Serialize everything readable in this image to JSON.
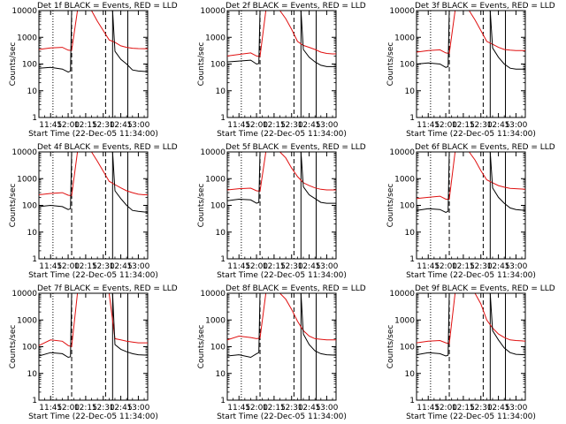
{
  "colors": {
    "events": "#000000",
    "lld": "#e01010",
    "background": "#ffffff",
    "axes": "#000000"
  },
  "chart_data": [
    {
      "type": "line",
      "title": "Det 1f BLACK = Events, RED = LLD",
      "xlabel": "Start Time (22-Dec-05 11:34:00)",
      "ylabel": "Counts/sec",
      "ylog": true,
      "ylim": [
        1,
        10000
      ],
      "xlim": [
        "11:35",
        "13:08"
      ],
      "x_ticks": [
        "11:45",
        "12:00",
        "12:15",
        "12:30",
        "12:45",
        "13:00"
      ],
      "y_ticks": [
        "1",
        "10",
        "100",
        "1000",
        "10000"
      ],
      "series": [
        {
          "name": "LLD",
          "x": [
            "11:35",
            "11:45",
            "11:55",
            "12:00",
            "12:03",
            "12:08",
            "12:15",
            "12:20",
            "12:25",
            "12:30",
            "12:35",
            "12:40",
            "12:45",
            "12:50",
            "12:55",
            "13:00",
            "13:05",
            "13:08"
          ],
          "y": [
            350,
            400,
            420,
            330,
            320,
            10000,
            10000,
            10000,
            4000,
            1800,
            800,
            650,
            480,
            420,
            390,
            380,
            375,
            370
          ]
        },
        {
          "name": "Events",
          "x": [
            "11:35",
            "11:45",
            "11:55",
            "12:00",
            "12:02",
            "12:03",
            "12:08",
            "12:15",
            "12:20",
            "12:25",
            "12:30",
            "12:33",
            "12:38",
            "12:40",
            "12:45",
            "12:50",
            "12:55",
            "13:00",
            "13:08"
          ],
          "y": [
            70,
            75,
            65,
            50,
            55,
            10000,
            10000,
            10000,
            10000,
            10000,
            10000,
            10000,
            10000,
            300,
            150,
            100,
            60,
            55,
            52
          ]
        }
      ]
    },
    {
      "type": "line",
      "title": "Det 2f BLACK = Events, RED = LLD",
      "xlabel": "Start Time (22-Dec-05 11:34:00)",
      "ylabel": "Counts/sec",
      "ylog": true,
      "ylim": [
        1,
        10000
      ],
      "xlim": [
        "11:35",
        "13:08"
      ],
      "x_ticks": [
        "11:45",
        "12:00",
        "12:15",
        "12:30",
        "12:45",
        "13:00"
      ],
      "y_ticks": [
        "1",
        "10",
        "100",
        "1000",
        "10000"
      ],
      "series": [
        {
          "name": "LLD",
          "x": [
            "11:35",
            "11:45",
            "11:55",
            "12:00",
            "12:03",
            "12:08",
            "12:15",
            "12:20",
            "12:25",
            "12:30",
            "12:35",
            "12:40",
            "12:45",
            "12:50",
            "12:55",
            "13:00",
            "13:05",
            "13:08"
          ],
          "y": [
            200,
            230,
            260,
            200,
            190,
            10000,
            10000,
            10000,
            5000,
            2000,
            700,
            500,
            420,
            350,
            280,
            250,
            240,
            240
          ]
        },
        {
          "name": "Events",
          "x": [
            "11:35",
            "11:45",
            "11:55",
            "12:00",
            "12:02",
            "12:03",
            "12:08",
            "12:15",
            "12:20",
            "12:25",
            "12:30",
            "12:33",
            "12:38",
            "12:40",
            "12:45",
            "12:50",
            "12:55",
            "13:00",
            "13:08"
          ],
          "y": [
            120,
            130,
            140,
            100,
            105,
            10000,
            10000,
            10000,
            10000,
            10000,
            10000,
            10000,
            10000,
            350,
            180,
            120,
            90,
            80,
            80
          ]
        }
      ]
    },
    {
      "type": "line",
      "title": "Det 3f BLACK = Events, RED = LLD",
      "xlabel": "Start Time (22-Dec-05 11:34:00)",
      "ylabel": "Counts/sec",
      "ylog": true,
      "ylim": [
        1,
        10000
      ],
      "xlim": [
        "11:35",
        "13:08"
      ],
      "x_ticks": [
        "11:45",
        "12:00",
        "12:15",
        "12:30",
        "12:45",
        "13:00"
      ],
      "y_ticks": [
        "1",
        "10",
        "100",
        "1000",
        "10000"
      ],
      "series": [
        {
          "name": "LLD",
          "x": [
            "11:35",
            "11:45",
            "11:55",
            "12:00",
            "12:03",
            "12:08",
            "12:15",
            "12:20",
            "12:25",
            "12:30",
            "12:35",
            "12:40",
            "12:45",
            "12:50",
            "12:55",
            "13:00",
            "13:05",
            "13:08"
          ],
          "y": [
            280,
            320,
            340,
            260,
            250,
            10000,
            10000,
            10000,
            4500,
            1800,
            700,
            550,
            420,
            350,
            330,
            320,
            320,
            320
          ]
        },
        {
          "name": "Events",
          "x": [
            "11:35",
            "11:45",
            "11:55",
            "12:00",
            "12:02",
            "12:03",
            "12:08",
            "12:15",
            "12:20",
            "12:25",
            "12:30",
            "12:33",
            "12:38",
            "12:40",
            "12:45",
            "12:50",
            "12:55",
            "13:00",
            "13:08"
          ],
          "y": [
            100,
            110,
            100,
            75,
            80,
            10000,
            10000,
            10000,
            10000,
            10000,
            10000,
            10000,
            10000,
            400,
            180,
            100,
            70,
            65,
            65
          ]
        }
      ]
    },
    {
      "type": "line",
      "title": "Det 4f BLACK = Events, RED = LLD",
      "xlabel": "Start Time (22-Dec-05 11:34:00)",
      "ylabel": "Counts/sec",
      "ylog": true,
      "ylim": [
        1,
        10000
      ],
      "xlim": [
        "11:35",
        "13:08"
      ],
      "x_ticks": [
        "11:45",
        "12:00",
        "12:15",
        "12:30",
        "12:45",
        "13:00"
      ],
      "y_ticks": [
        "1",
        "10",
        "100",
        "1000",
        "10000"
      ],
      "series": [
        {
          "name": "LLD",
          "x": [
            "11:35",
            "11:45",
            "11:55",
            "12:00",
            "12:03",
            "12:08",
            "12:15",
            "12:20",
            "12:25",
            "12:30",
            "12:35",
            "12:40",
            "12:45",
            "12:50",
            "12:55",
            "13:00",
            "13:05",
            "13:08"
          ],
          "y": [
            250,
            280,
            300,
            240,
            230,
            10000,
            10000,
            10000,
            4500,
            1900,
            800,
            600,
            450,
            350,
            300,
            260,
            250,
            250
          ]
        },
        {
          "name": "Events",
          "x": [
            "11:35",
            "11:45",
            "11:55",
            "12:00",
            "12:02",
            "12:03",
            "12:08",
            "12:15",
            "12:20",
            "12:25",
            "12:30",
            "12:33",
            "12:38",
            "12:40",
            "12:45",
            "12:50",
            "12:55",
            "13:00",
            "13:08"
          ],
          "y": [
            90,
            100,
            90,
            70,
            75,
            10000,
            10000,
            10000,
            10000,
            10000,
            10000,
            10000,
            10000,
            350,
            180,
            100,
            65,
            60,
            55
          ]
        }
      ]
    },
    {
      "type": "line",
      "title": "Det 5f BLACK = Events, RED = LLD",
      "xlabel": "Start Time (22-Dec-05 11:34:00)",
      "ylabel": "Counts/sec",
      "ylog": true,
      "ylim": [
        1,
        10000
      ],
      "xlim": [
        "11:35",
        "13:08"
      ],
      "x_ticks": [
        "11:45",
        "12:00",
        "12:15",
        "12:30",
        "12:45",
        "13:00"
      ],
      "y_ticks": [
        "1",
        "10",
        "100",
        "1000",
        "10000"
      ],
      "series": [
        {
          "name": "LLD",
          "x": [
            "11:35",
            "11:45",
            "11:55",
            "12:00",
            "12:03",
            "12:08",
            "12:15",
            "12:20",
            "12:25",
            "12:30",
            "12:35",
            "12:40",
            "12:45",
            "12:50",
            "12:55",
            "13:00",
            "13:05",
            "13:08"
          ],
          "y": [
            380,
            420,
            440,
            350,
            340,
            10000,
            10000,
            10000,
            6000,
            2500,
            1200,
            700,
            550,
            450,
            400,
            380,
            380,
            380
          ]
        },
        {
          "name": "Events",
          "x": [
            "11:35",
            "11:45",
            "11:55",
            "12:00",
            "12:02",
            "12:03",
            "12:08",
            "12:15",
            "12:20",
            "12:25",
            "12:30",
            "12:33",
            "12:38",
            "12:40",
            "12:45",
            "12:50",
            "12:55",
            "13:00",
            "13:08"
          ],
          "y": [
            150,
            170,
            160,
            120,
            130,
            10000,
            10000,
            10000,
            10000,
            10000,
            10000,
            10000,
            10000,
            500,
            250,
            180,
            130,
            120,
            120
          ]
        }
      ]
    },
    {
      "type": "line",
      "title": "Det 6f BLACK = Events, RED = LLD",
      "xlabel": "Start Time (22-Dec-05 11:34:00)",
      "ylabel": "Counts/sec",
      "ylog": true,
      "ylim": [
        1,
        10000
      ],
      "xlim": [
        "11:35",
        "13:08"
      ],
      "x_ticks": [
        "11:45",
        "12:00",
        "12:15",
        "12:30",
        "12:45",
        "13:00"
      ],
      "y_ticks": [
        "1",
        "10",
        "100",
        "1000",
        "10000"
      ],
      "series": [
        {
          "name": "LLD",
          "x": [
            "11:35",
            "11:45",
            "11:55",
            "12:00",
            "12:03",
            "12:08",
            "12:15",
            "12:20",
            "12:25",
            "12:30",
            "12:35",
            "12:40",
            "12:45",
            "12:50",
            "12:55",
            "13:00",
            "13:05",
            "13:08"
          ],
          "y": [
            180,
            200,
            220,
            170,
            170,
            10000,
            10000,
            10000,
            5000,
            2000,
            900,
            700,
            550,
            480,
            430,
            420,
            410,
            400
          ]
        },
        {
          "name": "Events",
          "x": [
            "11:35",
            "11:45",
            "11:55",
            "12:00",
            "12:02",
            "12:03",
            "12:08",
            "12:15",
            "12:20",
            "12:25",
            "12:30",
            "12:33",
            "12:38",
            "12:40",
            "12:45",
            "12:50",
            "12:55",
            "13:00",
            "13:08"
          ],
          "y": [
            65,
            75,
            70,
            55,
            60,
            10000,
            10000,
            10000,
            10000,
            10000,
            10000,
            10000,
            10000,
            450,
            200,
            120,
            80,
            70,
            65
          ]
        }
      ]
    },
    {
      "type": "line",
      "title": "Det 7f BLACK = Events, RED = LLD",
      "xlabel": "Start Time (22-Dec-05 11:34:00)",
      "ylabel": "Counts/sec",
      "ylog": true,
      "ylim": [
        1,
        10000
      ],
      "xlim": [
        "11:35",
        "13:08"
      ],
      "x_ticks": [
        "11:45",
        "12:00",
        "12:15",
        "12:30",
        "12:45",
        "13:00"
      ],
      "y_ticks": [
        "1",
        "10",
        "100",
        "1000",
        "10000"
      ],
      "series": [
        {
          "name": "LLD",
          "x": [
            "11:35",
            "11:45",
            "11:55",
            "12:00",
            "12:03",
            "12:08",
            "12:15",
            "12:20",
            "12:25",
            "12:30",
            "12:35",
            "12:40",
            "12:45",
            "12:50",
            "12:55",
            "13:00",
            "13:05",
            "13:08"
          ],
          "y": [
            110,
            180,
            160,
            110,
            100,
            10000,
            10000,
            10000,
            10000,
            10000,
            10000,
            200,
            180,
            160,
            150,
            140,
            140,
            140
          ]
        },
        {
          "name": "Events",
          "x": [
            "11:35",
            "11:45",
            "11:55",
            "12:00",
            "12:02",
            "12:03",
            "12:08",
            "12:15",
            "12:20",
            "12:25",
            "12:30",
            "12:33",
            "12:38",
            "12:40",
            "12:45",
            "12:50",
            "12:55",
            "13:00",
            "13:08"
          ],
          "y": [
            45,
            60,
            55,
            40,
            42,
            10000,
            10000,
            10000,
            10000,
            10000,
            10000,
            10000,
            10000,
            120,
            80,
            65,
            55,
            50,
            48
          ]
        }
      ]
    },
    {
      "type": "line",
      "title": "Det 8f BLACK = Events, RED = LLD",
      "xlabel": "Start Time (22-Dec-05 11:34:00)",
      "ylabel": "Counts/sec",
      "ylog": true,
      "ylim": [
        1,
        10000
      ],
      "xlim": [
        "11:35",
        "13:08"
      ],
      "x_ticks": [
        "11:45",
        "12:00",
        "12:15",
        "12:30",
        "12:45",
        "13:00"
      ],
      "y_ticks": [
        "1",
        "10",
        "100",
        "1000",
        "10000"
      ],
      "series": [
        {
          "name": "LLD",
          "x": [
            "11:35",
            "11:45",
            "11:55",
            "12:00",
            "12:03",
            "12:08",
            "12:15",
            "12:20",
            "12:25",
            "12:30",
            "12:35",
            "12:40",
            "12:45",
            "12:50",
            "12:55",
            "13:00",
            "13:05",
            "13:08"
          ],
          "y": [
            180,
            250,
            220,
            200,
            210,
            10000,
            10000,
            10000,
            6000,
            2500,
            900,
            400,
            250,
            200,
            190,
            180,
            180,
            180
          ]
        },
        {
          "name": "Events",
          "x": [
            "11:35",
            "11:45",
            "11:55",
            "12:00",
            "12:02",
            "12:03",
            "12:08",
            "12:15",
            "12:20",
            "12:25",
            "12:30",
            "12:33",
            "12:38",
            "12:40",
            "12:45",
            "12:50",
            "12:55",
            "13:00",
            "13:08"
          ],
          "y": [
            45,
            50,
            40,
            55,
            60,
            10000,
            10000,
            10000,
            10000,
            10000,
            10000,
            10000,
            10000,
            300,
            120,
            70,
            55,
            50,
            48
          ]
        }
      ]
    },
    {
      "type": "line",
      "title": "Det 9f BLACK = Events, RED = LLD",
      "xlabel": "Start Time (22-Dec-05 11:34:00)",
      "ylabel": "Counts/sec",
      "ylog": true,
      "ylim": [
        1,
        10000
      ],
      "xlim": [
        "11:35",
        "13:08"
      ],
      "x_ticks": [
        "11:45",
        "12:00",
        "12:15",
        "12:30",
        "12:45",
        "13:00"
      ],
      "y_ticks": [
        "1",
        "10",
        "100",
        "1000",
        "10000"
      ],
      "series": [
        {
          "name": "LLD",
          "x": [
            "11:35",
            "11:45",
            "11:55",
            "12:00",
            "12:03",
            "12:08",
            "12:15",
            "12:20",
            "12:25",
            "12:30",
            "12:35",
            "12:40",
            "12:45",
            "12:50",
            "12:55",
            "13:00",
            "13:05",
            "13:08"
          ],
          "y": [
            140,
            160,
            170,
            140,
            130,
            10000,
            10000,
            10000,
            10000,
            4000,
            1000,
            500,
            300,
            220,
            180,
            170,
            165,
            160
          ]
        },
        {
          "name": "Events",
          "x": [
            "11:35",
            "11:45",
            "11:55",
            "12:00",
            "12:02",
            "12:03",
            "12:08",
            "12:15",
            "12:20",
            "12:25",
            "12:30",
            "12:33",
            "12:38",
            "12:40",
            "12:45",
            "12:50",
            "12:55",
            "13:00",
            "13:08"
          ],
          "y": [
            50,
            60,
            55,
            45,
            48,
            10000,
            10000,
            10000,
            10000,
            10000,
            10000,
            10000,
            10000,
            400,
            180,
            90,
            60,
            52,
            50
          ]
        }
      ]
    }
  ]
}
